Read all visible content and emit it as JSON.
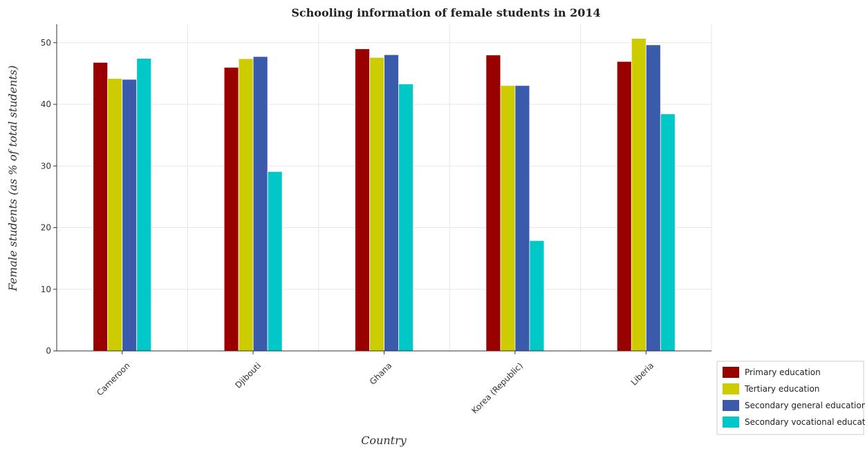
{
  "chart_data": {
    "type": "bar",
    "title": "Schooling information of female students in 2014",
    "xlabel": "Country",
    "ylabel": "Female students (as % of total students)",
    "ylim": [
      0,
      53
    ],
    "yticks": [
      0,
      10,
      20,
      30,
      40,
      50
    ],
    "grid": true,
    "legend_position": "bottom-right",
    "categories": [
      "Cameroon",
      "Djibouti",
      "Ghana",
      "Korea (Republic)",
      "Liberia"
    ],
    "series": [
      {
        "name": "Primary education",
        "color": "#990000",
        "values": [
          46.8,
          46.0,
          49.0,
          48.0,
          46.95
        ]
      },
      {
        "name": "Tertiary education",
        "color": "#cccc00",
        "values": [
          44.2,
          47.4,
          47.6,
          43.05,
          50.7
        ]
      },
      {
        "name": "Secondary general education",
        "color": "#3a5aab",
        "values": [
          44.05,
          47.75,
          48.05,
          43.05,
          49.65
        ]
      },
      {
        "name": "Secondary vocational education",
        "color": "#00c8c8",
        "values": [
          47.45,
          29.1,
          43.3,
          17.9,
          38.45
        ]
      }
    ]
  }
}
